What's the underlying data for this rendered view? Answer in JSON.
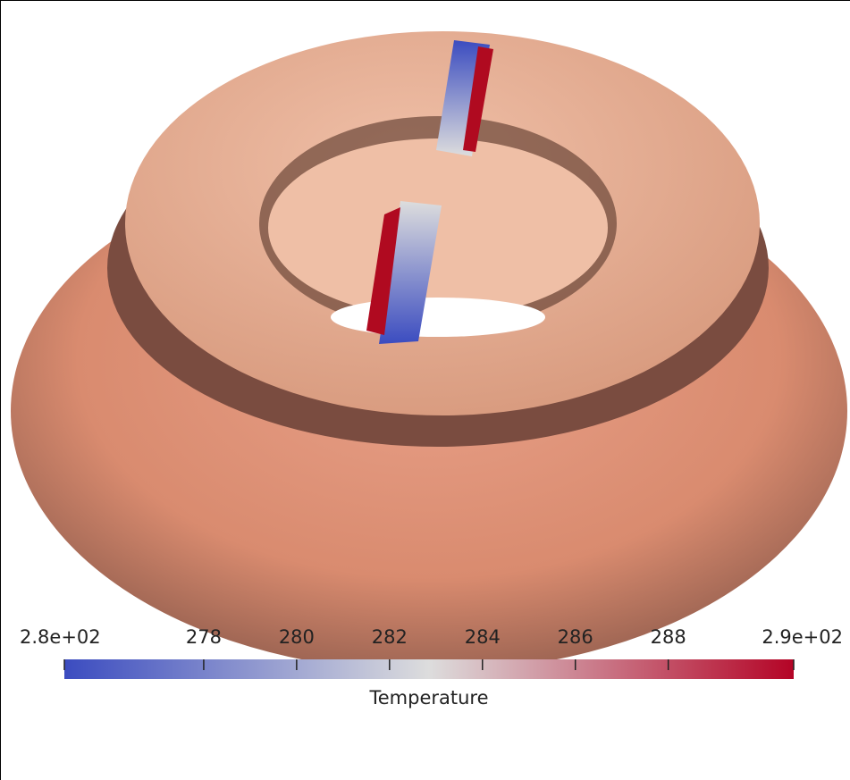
{
  "colorbar": {
    "title": "Temperature",
    "range": [
      275,
      290.7
    ],
    "ticks": [
      {
        "value": 275,
        "label": "2.8e+02"
      },
      278,
      280,
      282,
      284,
      286,
      288,
      {
        "value": 290.7,
        "label": "2.9e+02"
      }
    ]
  }
}
